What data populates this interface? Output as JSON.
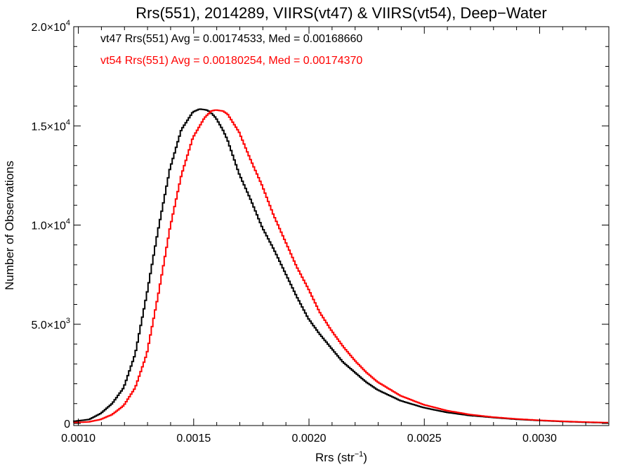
{
  "chart_data": {
    "type": "line",
    "title": "Rrs(551), 2014289, VIIRS(vt47) & VIIRS(vt54), Deep−Water",
    "xlabel": "Rrs (str",
    "xlabel_sup": "−1",
    "xlabel_close": ")",
    "ylabel": "Number of Observations",
    "xlim": [
      0.00098,
      0.0033
    ],
    "ylim": [
      0,
      20000
    ],
    "x_ticks": [
      {
        "value": 0.001,
        "label": "0.0010"
      },
      {
        "value": 0.0015,
        "label": "0.0015"
      },
      {
        "value": 0.002,
        "label": "0.0020"
      },
      {
        "value": 0.0025,
        "label": "0.0025"
      },
      {
        "value": 0.003,
        "label": "0.0030"
      }
    ],
    "y_ticks": [
      {
        "value": 0,
        "base": "0",
        "exp": ""
      },
      {
        "value": 5000,
        "base": "5.0×10",
        "exp": "3"
      },
      {
        "value": 10000,
        "base": "1.0×10",
        "exp": "4"
      },
      {
        "value": 15000,
        "base": "1.5×10",
        "exp": "4"
      },
      {
        "value": 20000,
        "base": "2.0×10",
        "exp": "4"
      }
    ],
    "grid": false,
    "legend": [
      {
        "text": "vt47 Rrs(551) Avg = 0.00174533, Med = 0.00168660",
        "color": "#000000"
      },
      {
        "text": "vt54 Rrs(551) Avg = 0.00180254, Med = 0.00174370",
        "color": "#ff0000"
      }
    ],
    "series": [
      {
        "color": "#000000",
        "x": [
          0.00098,
          0.00105,
          0.0011,
          0.00115,
          0.0012,
          0.00125,
          0.0013,
          0.00135,
          0.0014,
          0.00145,
          0.0015,
          0.00153,
          0.00156,
          0.00158,
          0.0016,
          0.00163,
          0.00165,
          0.0017,
          0.00175,
          0.0018,
          0.00185,
          0.0019,
          0.00195,
          0.002,
          0.00205,
          0.0021,
          0.00215,
          0.0022,
          0.00225,
          0.0023,
          0.0024,
          0.0025,
          0.0026,
          0.0027,
          0.0028,
          0.0029,
          0.003,
          0.0031,
          0.0032,
          0.0033
        ],
        "y": [
          100,
          200,
          500,
          1000,
          1800,
          3500,
          6500,
          9800,
          12800,
          14800,
          15700,
          15850,
          15800,
          15650,
          15400,
          14800,
          14300,
          12600,
          11300,
          9900,
          8800,
          7600,
          6400,
          5300,
          4500,
          3800,
          3100,
          2600,
          2100,
          1700,
          1150,
          800,
          560,
          400,
          300,
          210,
          150,
          100,
          60,
          30
        ]
      },
      {
        "color": "#ff0000",
        "x": [
          0.00098,
          0.00105,
          0.0011,
          0.00115,
          0.0012,
          0.00125,
          0.0013,
          0.00135,
          0.0014,
          0.00145,
          0.0015,
          0.00155,
          0.00158,
          0.0016,
          0.00163,
          0.00165,
          0.0017,
          0.00175,
          0.0018,
          0.00185,
          0.0019,
          0.00195,
          0.002,
          0.00205,
          0.0021,
          0.00215,
          0.0022,
          0.00225,
          0.0023,
          0.0024,
          0.0025,
          0.0026,
          0.0027,
          0.0028,
          0.0029,
          0.003,
          0.0031,
          0.0032,
          0.0033
        ],
        "y": [
          40,
          80,
          200,
          450,
          900,
          1800,
          3500,
          6500,
          9800,
          12500,
          14400,
          15400,
          15750,
          15800,
          15750,
          15600,
          14700,
          13300,
          12000,
          10500,
          9200,
          7900,
          6800,
          5600,
          4700,
          3900,
          3200,
          2600,
          2100,
          1400,
          950,
          650,
          450,
          320,
          230,
          160,
          110,
          70,
          40
        ]
      }
    ]
  }
}
